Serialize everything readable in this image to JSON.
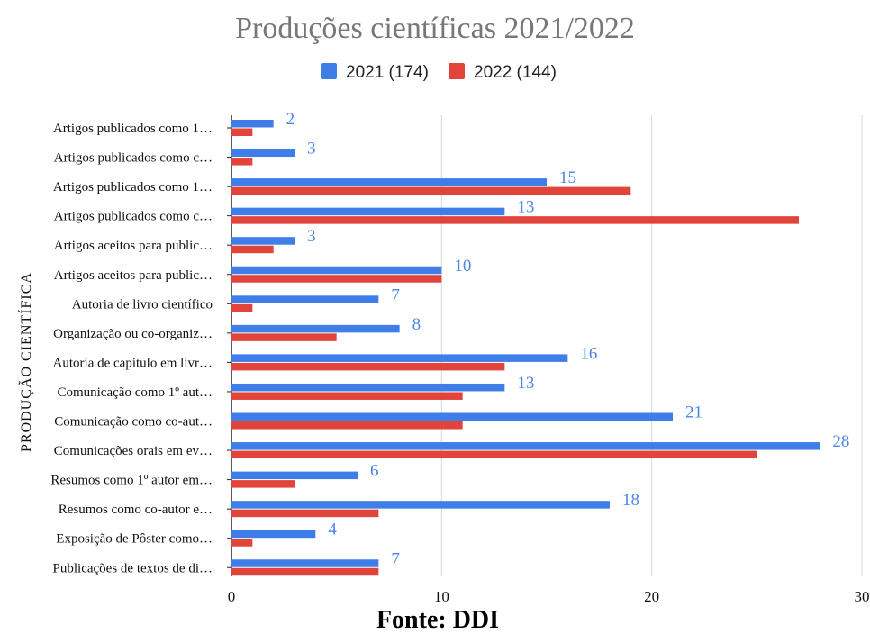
{
  "chart_data": {
    "type": "bar",
    "orientation": "horizontal",
    "title": "Produções científicas 2021/2022",
    "ylabel": "PRODUÇÃO CIENTÍFICA",
    "xlabel": "",
    "source": "Fonte: DDI",
    "xlim": [
      0,
      30
    ],
    "xticks": [
      0,
      10,
      20,
      30
    ],
    "grid": "vertical",
    "legend_position": "top",
    "categories": [
      "Artigos publicados como 1…",
      "Artigos publicados como c…",
      "Artigos publicados como 1…",
      "Artigos publicados como c…",
      "Artigos aceitos para public…",
      "Artigos aceitos para public…",
      "Autoria de livro científico",
      "Organização ou co-organiz…",
      "Autoria de capítulo em livr…",
      "Comunicação como 1º aut…",
      "Comunicação como co-aut…",
      "Comunicações orais em ev…",
      "Resumos como 1º autor em…",
      "Resumos como co-autor e…",
      "Exposição de Pôster como…",
      "Publicações de textos de di…"
    ],
    "series": [
      {
        "name": "2021 (174)",
        "color": "#3f7ee8",
        "label_color": "#4a86e8",
        "values": [
          2,
          3,
          15,
          13,
          3,
          10,
          7,
          8,
          16,
          13,
          21,
          28,
          6,
          18,
          4,
          7
        ],
        "data_labels": [
          "2",
          "3",
          "15",
          "13",
          "3",
          "10",
          "7",
          "8",
          "16",
          "13",
          "21",
          "28",
          "6",
          "18",
          "4",
          "7"
        ]
      },
      {
        "name": "2022 (144)",
        "color": "#e0443b",
        "values": [
          1,
          1,
          19,
          27,
          2,
          10,
          1,
          5,
          13,
          11,
          11,
          25,
          3,
          7,
          1,
          7
        ]
      }
    ]
  }
}
